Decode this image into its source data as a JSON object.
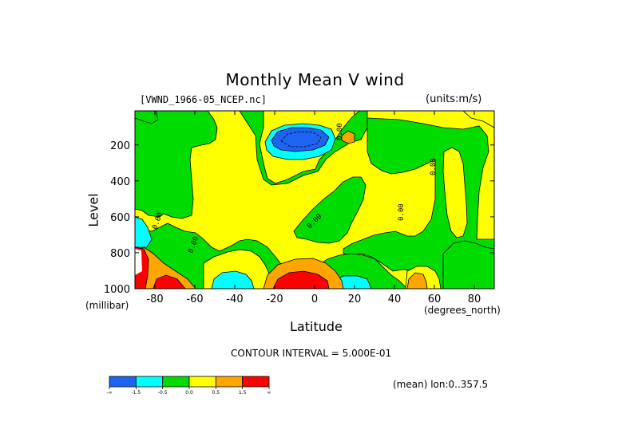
{
  "chart_data": {
    "type": "heatmap",
    "title": "Monthly Mean V wind",
    "dataset_label": "[VWND_1966-05_NCEP.nc]",
    "units_label": "(units:m/s)",
    "xlabel": "Latitude",
    "x_units": "(degrees_north)",
    "ylabel": "Level",
    "y_units": "(millibar)",
    "xlim": [
      -90,
      90
    ],
    "ylim": [
      1000,
      10
    ],
    "y_inverted": true,
    "x_ticks": [
      -80,
      -60,
      -40,
      -20,
      0,
      20,
      40,
      60,
      80
    ],
    "y_ticks": [
      200,
      400,
      600,
      800,
      1000
    ],
    "contour_interval_text": "CONTOUR INTERVAL = 5.000E-01",
    "mean_text": "(mean) lon:0..357.5",
    "contour_labels": [
      "0.00",
      "0.00",
      "0.00",
      "0.00",
      "0.00",
      "0.00"
    ],
    "colorbar": {
      "bins": [
        {
          "range": "< -1.5",
          "color": "#1e64f0"
        },
        {
          "range": "-1.5 to -0.5",
          "color": "#00ffff"
        },
        {
          "range": "-0.5 to 0.0",
          "color": "#00dc00"
        },
        {
          "range": "0.0 to 0.5",
          "color": "#ffff00"
        },
        {
          "range": "0.5 to 1.5",
          "color": "#ffa500"
        },
        {
          "range": "> 1.5",
          "color": "#ff0000"
        }
      ],
      "tick_labels": [
        "-∞",
        "-1.5",
        "-0.5",
        "0.0",
        "0.5",
        "1.5",
        "∞"
      ]
    },
    "regions": [
      {
        "desc": "background",
        "value_class": "0.0 to 0.5",
        "color": "#ffff00"
      },
      {
        "desc": "southern polar column",
        "value_class": "-0.5 to 0.0",
        "color": "#00dc00"
      },
      {
        "desc": "upper tropics jet",
        "value_class": "< -1.5",
        "color": "#1e64f0"
      },
      {
        "desc": "equatorial surface",
        "value_class": "> 1.5",
        "color": "#ff0000"
      },
      {
        "desc": "high-latitude surface",
        "value_class": "> 1.5",
        "color": "#ff0000"
      }
    ]
  }
}
